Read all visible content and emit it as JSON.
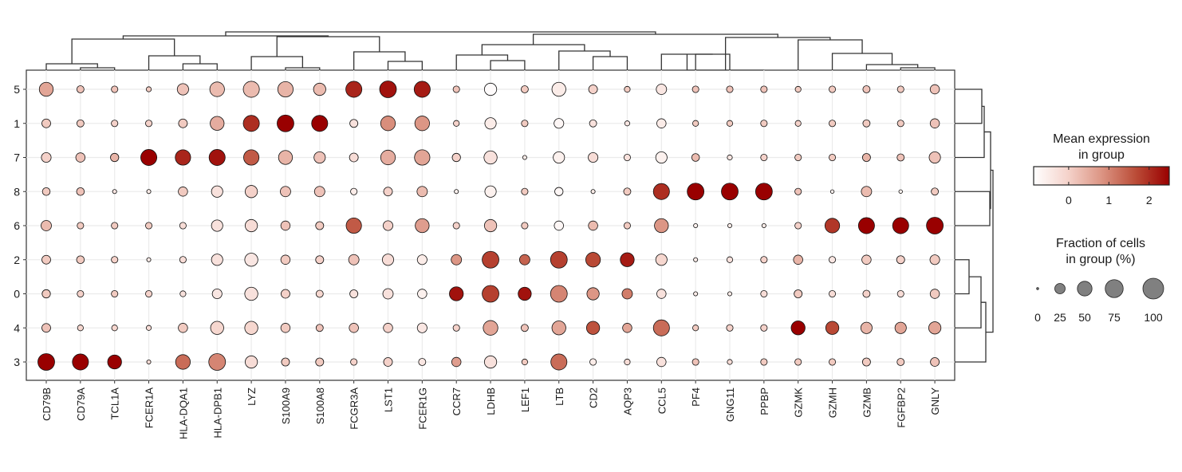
{
  "chart_data": {
    "type": "dotplot",
    "title": "",
    "xlabel": "",
    "ylabel": "",
    "genes": [
      "CD79B",
      "CD79A",
      "TCL1A",
      "FCER1A",
      "HLA-DQA1",
      "HLA-DPB1",
      "LYZ",
      "S100A9",
      "S100A8",
      "FCGR3A",
      "LST1",
      "FCER1G",
      "CCR7",
      "LDHB",
      "LEF1",
      "LTB",
      "CD2",
      "AQP3",
      "CCL5",
      "PF4",
      "GNG11",
      "PPBP",
      "GZMK",
      "GZMH",
      "GZMB",
      "FGFBP2",
      "GNLY"
    ],
    "groups": [
      "5",
      "1",
      "7",
      "8",
      "6",
      "2",
      "0",
      "4",
      "3"
    ],
    "fraction_pct": {
      "5": [
        45,
        12,
        10,
        6,
        30,
        50,
        60,
        55,
        35,
        60,
        65,
        60,
        10,
        35,
        12,
        45,
        18,
        8,
        25,
        10,
        10,
        10,
        8,
        10,
        12,
        10,
        20
      ],
      "1": [
        18,
        12,
        10,
        10,
        18,
        45,
        60,
        65,
        60,
        15,
        50,
        50,
        8,
        30,
        10,
        22,
        12,
        6,
        20,
        8,
        8,
        10,
        8,
        10,
        12,
        10,
        20
      ],
      "7": [
        22,
        20,
        16,
        60,
        55,
        60,
        55,
        45,
        30,
        18,
        50,
        55,
        16,
        40,
        4,
        30,
        22,
        10,
        30,
        14,
        6,
        10,
        10,
        10,
        15,
        12,
        30
      ],
      "8": [
        14,
        14,
        4,
        4,
        20,
        30,
        35,
        25,
        25,
        10,
        18,
        25,
        4,
        30,
        10,
        16,
        4,
        12,
        60,
        65,
        65,
        65,
        10,
        3,
        25,
        3,
        12
      ],
      "6": [
        25,
        10,
        10,
        10,
        10,
        30,
        35,
        20,
        15,
        55,
        22,
        45,
        10,
        35,
        10,
        20,
        20,
        10,
        45,
        4,
        4,
        4,
        10,
        50,
        60,
        60,
        65
      ],
      "2": [
        18,
        14,
        10,
        4,
        10,
        30,
        40,
        20,
        15,
        25,
        30,
        22,
        25,
        65,
        25,
        65,
        50,
        45,
        30,
        4,
        8,
        10,
        20,
        10,
        20,
        15,
        22
      ],
      "0": [
        16,
        10,
        10,
        10,
        8,
        22,
        40,
        18,
        12,
        15,
        25,
        20,
        45,
        65,
        40,
        65,
        35,
        25,
        20,
        4,
        4,
        10,
        15,
        10,
        12,
        10,
        20
      ],
      "4": [
        18,
        8,
        8,
        6,
        20,
        40,
        40,
        20,
        12,
        20,
        20,
        22,
        10,
        50,
        12,
        45,
        40,
        20,
        60,
        8,
        10,
        10,
        45,
        40,
        30,
        30,
        35
      ],
      "3": [
        65,
        60,
        45,
        4,
        50,
        65,
        35,
        15,
        15,
        10,
        18,
        12,
        20,
        35,
        8,
        60,
        10,
        8,
        20,
        10,
        6,
        10,
        10,
        10,
        15,
        12,
        18
      ]
    },
    "mean_expression": {
      "5": [
        0.6,
        0.2,
        0.2,
        0.1,
        0.2,
        0.3,
        0.3,
        0.4,
        0.3,
        2.1,
        2.3,
        2.2,
        0.2,
        -0.8,
        0.1,
        -0.5,
        0.0,
        0.1,
        -0.4,
        0.2,
        0.2,
        0.2,
        0.1,
        0.1,
        0.2,
        0.1,
        0.2
      ],
      "1": [
        0.1,
        0.1,
        0.0,
        0.0,
        0.1,
        0.5,
        2.0,
        2.5,
        2.5,
        -0.3,
        0.9,
        0.8,
        0.0,
        -0.5,
        0.1,
        -0.7,
        -0.3,
        -0.4,
        -0.5,
        0.1,
        0.1,
        0.1,
        0.0,
        0.1,
        0.1,
        0.1,
        0.2
      ],
      "7": [
        0.0,
        0.2,
        0.4,
        2.5,
        2.1,
        2.3,
        1.5,
        0.4,
        0.2,
        -0.2,
        0.5,
        0.6,
        0.0,
        -0.3,
        -0.5,
        -0.6,
        -0.2,
        -0.3,
        -0.6,
        0.3,
        -0.4,
        0.0,
        0.1,
        0.1,
        0.4,
        0.2,
        0.2
      ],
      "8": [
        0.1,
        0.2,
        -0.4,
        -0.5,
        0.1,
        -0.3,
        0.0,
        0.2,
        0.2,
        -0.5,
        0.0,
        0.3,
        -0.6,
        -0.6,
        0.1,
        -0.7,
        -0.5,
        0.1,
        2.0,
        2.5,
        2.5,
        2.5,
        0.2,
        -0.6,
        0.3,
        -0.6,
        0.1
      ],
      "6": [
        0.3,
        0.1,
        0.1,
        0.1,
        -0.2,
        -0.3,
        -0.2,
        0.2,
        0.1,
        1.5,
        0.0,
        0.7,
        0.0,
        0.2,
        0.1,
        -0.7,
        0.3,
        0.1,
        0.8,
        -0.6,
        -0.5,
        -0.5,
        0.0,
        1.9,
        2.5,
        2.5,
        2.5
      ],
      "2": [
        0.1,
        0.1,
        0.0,
        -0.5,
        -0.2,
        -0.3,
        -0.4,
        0.1,
        0.0,
        0.2,
        -0.2,
        -0.5,
        0.8,
        1.8,
        1.4,
        1.8,
        1.7,
        2.2,
        -0.1,
        -0.5,
        -0.3,
        0.0,
        0.4,
        -0.4,
        0.1,
        0.0,
        0.1
      ],
      "0": [
        0.1,
        0.0,
        0.1,
        0.0,
        -0.3,
        -0.4,
        -0.3,
        0.0,
        -0.1,
        -0.3,
        -0.3,
        -0.6,
        2.3,
        1.8,
        2.3,
        1.0,
        0.8,
        1.1,
        -0.3,
        -0.5,
        -0.5,
        -0.2,
        0.1,
        -0.2,
        0.0,
        -0.2,
        0.1
      ],
      "4": [
        0.2,
        -0.1,
        -0.1,
        -0.2,
        0.1,
        -0.1,
        -0.1,
        0.1,
        0.2,
        0.2,
        0.0,
        -0.4,
        0.0,
        0.6,
        0.2,
        0.6,
        1.6,
        0.6,
        1.3,
        0.1,
        0.0,
        0.0,
        2.5,
        1.7,
        0.4,
        0.6,
        0.6
      ],
      "3": [
        2.5,
        2.5,
        2.5,
        -0.2,
        1.3,
        1.0,
        -0.2,
        0.1,
        0.1,
        0.0,
        0.0,
        -0.4,
        0.7,
        -0.3,
        0.1,
        1.3,
        -0.5,
        -0.2,
        -0.3,
        0.2,
        -0.2,
        0.1,
        0.1,
        0.1,
        0.1,
        0.1,
        0.2
      ]
    },
    "legend_color": {
      "title_line1": "Mean expression",
      "title_line2": "in group",
      "range": [
        -0.87,
        2.5
      ],
      "ticks": [
        "0",
        "1",
        "2"
      ],
      "tick_values": [
        0,
        1,
        2
      ],
      "low_color": "#ffffff",
      "high_color": "#990000",
      "placement": "right"
    },
    "legend_size": {
      "title_line1": "Fraction of cells",
      "title_line2": "in group (%)",
      "values": [
        0,
        25,
        50,
        75,
        100
      ],
      "labels": [
        "0",
        "25",
        "50",
        "75",
        "100"
      ],
      "swatch_color": "#808080",
      "placement": "right"
    },
    "grid": true,
    "column_dendrogram": true,
    "row_dendrogram": true
  }
}
